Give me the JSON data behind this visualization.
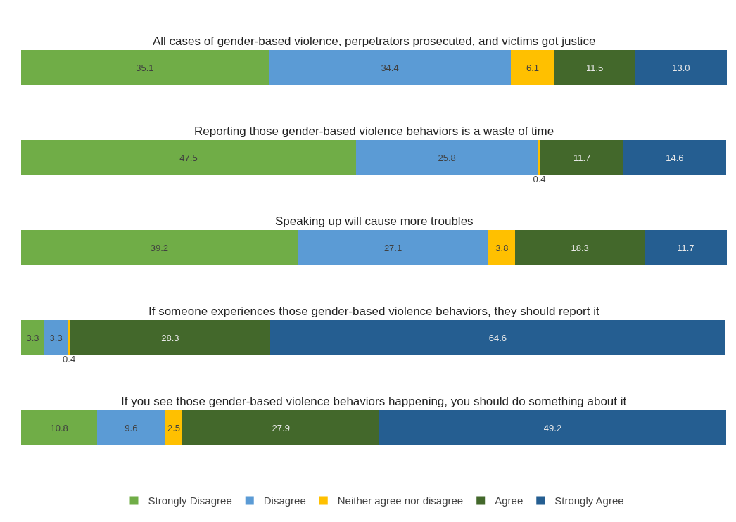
{
  "chart_data": {
    "type": "bar",
    "orientation": "horizontal",
    "stacked": true,
    "legend": "bottom",
    "categories": [
      "All cases of gender-based violence, perpetrators prosecuted, and victims got justice",
      "Reporting those gender-based violence behaviors is a waste of time",
      "Speaking up will cause more troubles",
      "If someone experiences those gender-based violence behaviors, they should report it",
      "If you see those gender-based violence behaviors happening, you should do something about it"
    ],
    "series": [
      {
        "name": "Strongly Disagree",
        "color": "#70ad47",
        "values": [
          35.1,
          47.5,
          39.2,
          3.3,
          10.8
        ],
        "value_labels": [
          "35.1",
          "47.5",
          "39.2",
          "3.3",
          "10.8"
        ]
      },
      {
        "name": "Disagree",
        "color": "#5b9bd5",
        "values": [
          34.4,
          25.8,
          27.1,
          3.3,
          9.6
        ],
        "value_labels": [
          "34.4",
          "25.8",
          "27.1",
          "3.3",
          "9.6"
        ]
      },
      {
        "name": "Neither agree nor disagree",
        "color": "#ffc000",
        "values": [
          6.1,
          0.4,
          3.8,
          0.4,
          2.5
        ],
        "value_labels": [
          "6.1",
          "0.4",
          "3.8",
          "0.4",
          "2.5"
        ]
      },
      {
        "name": "Agree",
        "color": "#43682b",
        "values": [
          11.5,
          11.7,
          18.3,
          28.3,
          27.9
        ],
        "value_labels": [
          "11.5",
          "11.7",
          "18.3",
          "28.3",
          "27.9"
        ]
      },
      {
        "name": "Strongly Agree",
        "color": "#255e91",
        "values": [
          13.0,
          14.6,
          11.7,
          64.6,
          49.2
        ],
        "value_labels": [
          "13.0",
          "14.6",
          "11.7",
          "64.6",
          "49.2"
        ]
      }
    ]
  }
}
